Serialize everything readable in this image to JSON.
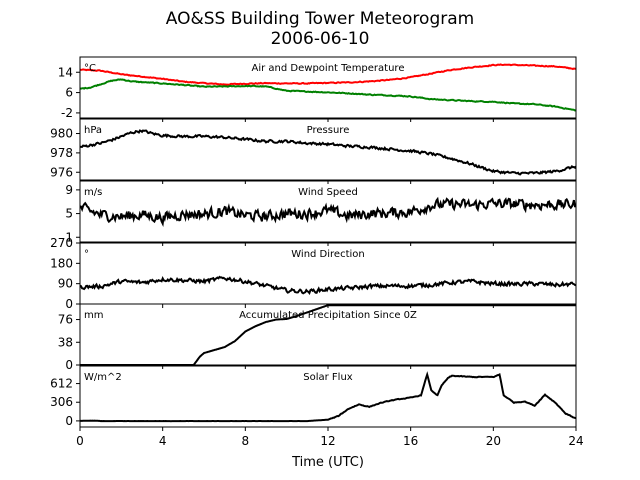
{
  "title_line1": "AO&SS Building Tower Meteorogram",
  "title_line2": "2006-06-10",
  "chart_data": [
    {
      "type": "line",
      "panel": "temperature",
      "title": "Air and Dewpoint Temperature",
      "unit": "°C",
      "ylim": [
        -4,
        20
      ],
      "yticks": [
        -2,
        6,
        14
      ],
      "xlim": [
        0,
        24
      ],
      "series": [
        {
          "color": "#ff0000",
          "x": [
            0,
            1,
            2,
            3,
            4,
            5,
            6,
            7,
            8,
            9,
            10,
            11,
            12,
            13,
            14,
            15,
            16,
            17,
            18,
            19,
            20,
            20.5,
            21,
            22,
            23,
            24
          ],
          "values": [
            15.0,
            14.6,
            13.2,
            12.3,
            11.4,
            10.3,
            9.7,
            9.2,
            9.5,
            9.7,
            9.6,
            9.6,
            9.8,
            10.0,
            10.4,
            11.0,
            12.0,
            13.5,
            15.0,
            16.0,
            16.8,
            17.0,
            16.9,
            16.6,
            16.3,
            15.3
          ]
        },
        {
          "color": "#008000",
          "x": [
            0,
            0.5,
            1,
            1.5,
            2,
            2.5,
            3,
            4,
            5,
            6,
            7,
            8,
            9,
            10,
            11,
            12,
            13,
            14,
            15,
            16,
            17,
            18,
            19,
            20,
            21,
            22,
            23,
            24
          ],
          "values": [
            7.5,
            8.0,
            9.3,
            10.6,
            11.2,
            10.4,
            10.1,
            9.6,
            9.0,
            8.3,
            8.4,
            8.6,
            8.4,
            6.7,
            6.4,
            6.1,
            5.7,
            5.2,
            4.9,
            4.5,
            3.4,
            3.0,
            2.6,
            2.4,
            1.7,
            1.4,
            0.5,
            -1.0
          ]
        }
      ]
    },
    {
      "type": "line",
      "panel": "pressure",
      "title": "Pressure",
      "unit": "hPa",
      "ylim": [
        975.2,
        981.5
      ],
      "yticks": [
        976,
        978,
        980
      ],
      "xlim": [
        0,
        24
      ],
      "series": [
        {
          "color": "#000000",
          "x": [
            0,
            0.5,
            1,
            1.5,
            2,
            2.5,
            3,
            3.5,
            4,
            5,
            6,
            7,
            8,
            9,
            10,
            11,
            12,
            13,
            14,
            15,
            16,
            17,
            18,
            19,
            20,
            21,
            22,
            23,
            24
          ],
          "values": [
            978.6,
            978.8,
            979.0,
            979.3,
            979.7,
            980.1,
            980.3,
            980.0,
            979.8,
            979.7,
            979.7,
            979.6,
            979.4,
            979.2,
            979.2,
            979.0,
            978.9,
            978.7,
            978.6,
            978.4,
            978.2,
            977.9,
            977.4,
            976.8,
            976.1,
            975.9,
            975.9,
            976.1,
            976.6
          ]
        }
      ]
    },
    {
      "type": "line",
      "panel": "wind-speed",
      "title": "Wind Speed",
      "unit": "m/s",
      "ylim": [
        0.2,
        10.5
      ],
      "yticks": [
        1,
        5,
        9
      ],
      "xlim": [
        0,
        24
      ],
      "series": [
        {
          "color": "#000000",
          "x": [
            0,
            1,
            2,
            3,
            4,
            5,
            6,
            7,
            8,
            9,
            10,
            11,
            12,
            13,
            14,
            15,
            16,
            17,
            18,
            19,
            20,
            21,
            22,
            23,
            24
          ],
          "values": [
            6.0,
            4.8,
            4.5,
            4.8,
            4.3,
            4.9,
            4.9,
            5.4,
            4.7,
            4.5,
            5.0,
            5.0,
            5.5,
            4.6,
            5.0,
            5.1,
            5.3,
            6.4,
            6.6,
            6.4,
            6.7,
            6.6,
            6.5,
            6.5,
            6.6
          ]
        }
      ]
    },
    {
      "type": "line",
      "panel": "wind-direction",
      "title": "Wind Direction",
      "unit": "°",
      "ylim": [
        0,
        270
      ],
      "yticks": [
        0,
        90,
        180,
        270
      ],
      "xlim": [
        0,
        24
      ],
      "series": [
        {
          "color": "#000000",
          "x": [
            0,
            1,
            2,
            3,
            4,
            5,
            6,
            7,
            8,
            9,
            10,
            11,
            12,
            13,
            14,
            15,
            16,
            17,
            18,
            19,
            20,
            21,
            22,
            23,
            24
          ],
          "values": [
            75,
            78,
            100,
            95,
            110,
            105,
            100,
            115,
            100,
            80,
            60,
            55,
            65,
            70,
            78,
            80,
            80,
            85,
            95,
            100,
            90,
            88,
            90,
            85,
            88
          ]
        }
      ]
    },
    {
      "type": "line",
      "panel": "precipitation",
      "title": "Accumulated Precipitation Since 0Z",
      "unit": "mm",
      "ylim": [
        0,
        102
      ],
      "yticks": [
        0,
        38,
        76
      ],
      "xlim": [
        0,
        24
      ],
      "series": [
        {
          "color": "#000000",
          "x": [
            0,
            5.5,
            5.8,
            6,
            6.5,
            7,
            7.5,
            8,
            8.5,
            9,
            9.5,
            10,
            10.5,
            11,
            11.5,
            12,
            24
          ],
          "values": [
            0,
            0,
            14,
            20,
            25,
            30,
            40,
            56,
            65,
            72,
            76,
            77,
            82,
            88,
            94,
            100,
            100
          ]
        }
      ]
    },
    {
      "type": "line",
      "panel": "solar-flux",
      "title": "Solar Flux",
      "unit": "W/m^2",
      "ylim": [
        -100,
        900
      ],
      "yticks": [
        0,
        306,
        612
      ],
      "xlim": [
        0,
        24
      ],
      "series": [
        {
          "color": "#000000",
          "x": [
            0,
            0.7,
            1,
            3,
            5,
            7,
            9,
            11,
            12,
            12.5,
            13,
            13.5,
            14,
            14.5,
            15,
            15.5,
            16,
            16.5,
            16.8,
            17,
            17.3,
            17.5,
            17.8,
            18,
            19,
            20,
            20.3,
            20.5,
            21,
            21.5,
            22,
            22.5,
            23,
            23.5,
            24
          ],
          "values": [
            0,
            5,
            -3,
            -3,
            -3,
            -3,
            -3,
            -3,
            20,
            80,
            200,
            270,
            230,
            290,
            330,
            360,
            380,
            420,
            760,
            500,
            420,
            580,
            700,
            740,
            720,
            720,
            760,
            420,
            300,
            320,
            250,
            430,
            300,
            120,
            40
          ]
        }
      ]
    }
  ],
  "x_axis": {
    "label": "Time (UTC)",
    "ticks": [
      0,
      4,
      8,
      12,
      16,
      20,
      24
    ]
  }
}
